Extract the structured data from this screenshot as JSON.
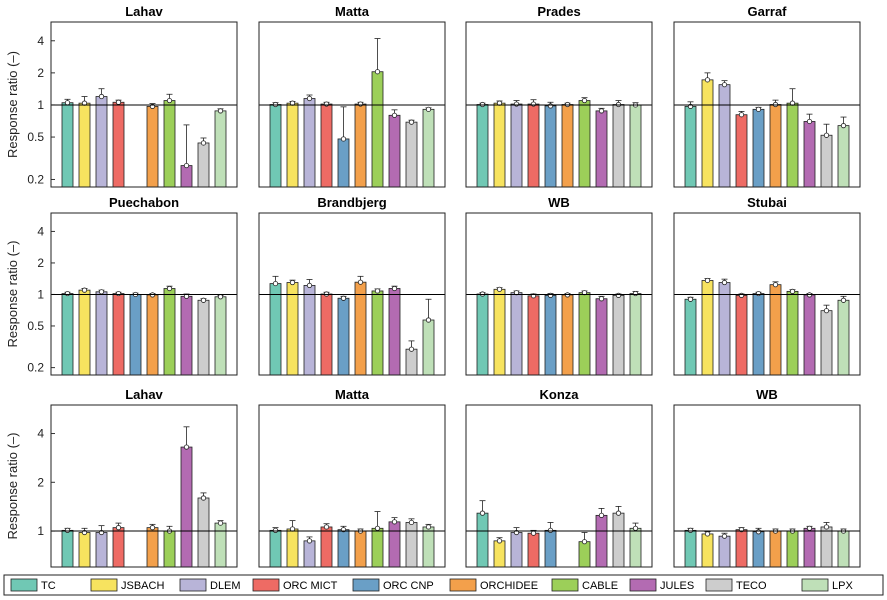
{
  "chart_data": {
    "type": "bar",
    "scale": "log",
    "ylabel": "Response ratio (–)",
    "reference_line": 1,
    "series": [
      {
        "name": "TC",
        "color": "#70c8b4"
      },
      {
        "name": "JSBACH",
        "color": "#f7e35f"
      },
      {
        "name": "DLEM",
        "color": "#b8b4d8"
      },
      {
        "name": "ORC MICT",
        "color": "#ee6b64"
      },
      {
        "name": "ORC CNP",
        "color": "#6a9fc6"
      },
      {
        "name": "ORCHIDEE",
        "color": "#f3a04b"
      },
      {
        "name": "CABLE",
        "color": "#9ccf59"
      },
      {
        "name": "JULES",
        "color": "#b36bb2"
      },
      {
        "name": "TECO",
        "color": "#cdcdcd"
      },
      {
        "name": "LPX",
        "color": "#bfe0b8"
      }
    ],
    "panels": [
      {
        "title": "Lahav",
        "ylim": [
          0.17,
          6.0
        ],
        "ticks": [
          0.2,
          0.5,
          1,
          2,
          4
        ],
        "values": [
          1.05,
          1.04,
          1.2,
          1.06,
          null,
          0.97,
          1.1,
          0.27,
          0.44,
          0.88
        ],
        "errors": [
          0.08,
          0.16,
          0.22,
          0.05,
          null,
          0.06,
          0.16,
          0.38,
          0.05,
          0.04
        ]
      },
      {
        "title": "Matta",
        "ylim": [
          0.17,
          6.0
        ],
        "ticks": [],
        "values": [
          1.01,
          1.04,
          1.15,
          1.02,
          0.48,
          1.02,
          2.05,
          0.8,
          0.69,
          0.91
        ],
        "errors": [
          0.04,
          0.04,
          0.09,
          0.04,
          0.48,
          0.04,
          2.15,
          0.1,
          0.03,
          0.03
        ]
      },
      {
        "title": "Prades",
        "ylim": [
          0.17,
          6.0
        ],
        "ticks": [],
        "values": [
          1.01,
          1.04,
          1.02,
          1.02,
          0.98,
          1.01,
          1.1,
          0.88,
          1.01,
          1.0
        ],
        "errors": [
          0.03,
          0.05,
          0.08,
          0.1,
          0.08,
          0.03,
          0.07,
          0.05,
          0.09,
          0.05
        ]
      },
      {
        "title": "Garraf",
        "ylim": [
          0.17,
          6.0
        ],
        "ticks": [],
        "values": [
          0.97,
          1.72,
          1.55,
          0.81,
          0.91,
          1.01,
          1.04,
          0.7,
          0.52,
          0.64
        ],
        "errors": [
          0.1,
          0.28,
          0.14,
          0.06,
          0.04,
          0.1,
          0.38,
          0.12,
          0.14,
          0.13
        ]
      },
      {
        "title": "Puechabon",
        "ylim": [
          0.17,
          6.0
        ],
        "ticks": [
          0.2,
          0.5,
          1,
          2,
          4
        ],
        "values": [
          1.02,
          1.1,
          1.06,
          1.02,
          1.0,
          0.99,
          1.14,
          0.96,
          0.88,
          0.95
        ],
        "errors": [
          0.03,
          0.04,
          0.04,
          0.03,
          0.03,
          0.03,
          0.06,
          0.05,
          0.03,
          0.03
        ]
      },
      {
        "title": "Brandbjerg",
        "ylim": [
          0.17,
          6.0
        ],
        "ticks": [],
        "values": [
          1.27,
          1.3,
          1.22,
          1.01,
          0.92,
          1.31,
          1.08,
          1.14,
          0.3,
          0.57
        ],
        "errors": [
          0.22,
          0.07,
          0.17,
          0.04,
          0.04,
          0.18,
          0.05,
          0.06,
          0.06,
          0.33
        ]
      },
      {
        "title": "WB",
        "ylim": [
          0.17,
          6.0
        ],
        "ticks": [],
        "values": [
          1.01,
          1.12,
          1.04,
          0.97,
          0.98,
          0.99,
          1.04,
          0.91,
          0.98,
          1.02
        ],
        "errors": [
          0.03,
          0.04,
          0.04,
          0.04,
          0.04,
          0.03,
          0.04,
          0.05,
          0.03,
          0.05
        ]
      },
      {
        "title": "Stubai",
        "ylim": [
          0.17,
          6.0
        ],
        "ticks": [],
        "values": [
          0.9,
          1.36,
          1.3,
          0.98,
          1.02,
          1.24,
          1.07,
          0.99,
          0.7,
          0.88
        ],
        "errors": [
          0.04,
          0.06,
          0.1,
          0.03,
          0.03,
          0.08,
          0.04,
          0.03,
          0.09,
          0.08
        ]
      },
      {
        "title": "Lahav",
        "ylim": [
          0.6,
          6.0
        ],
        "ticks": [
          1,
          2,
          4
        ],
        "values": [
          1.01,
          0.98,
          0.98,
          1.05,
          null,
          1.05,
          1.0,
          3.3,
          1.6,
          1.12
        ],
        "errors": [
          0.03,
          0.06,
          0.1,
          0.07,
          null,
          0.05,
          0.07,
          1.1,
          0.12,
          0.04
        ]
      },
      {
        "title": "Matta",
        "ylim": [
          0.6,
          6.0
        ],
        "ticks": [],
        "values": [
          1.01,
          1.03,
          0.87,
          1.06,
          1.02,
          1.0,
          1.04,
          1.14,
          1.13,
          1.06
        ],
        "errors": [
          0.04,
          0.13,
          0.05,
          0.05,
          0.05,
          0.03,
          0.28,
          0.07,
          0.06,
          0.04
        ]
      },
      {
        "title": "Konza",
        "ylim": [
          0.6,
          6.0
        ],
        "ticks": [],
        "values": [
          1.29,
          0.87,
          0.98,
          0.97,
          1.01,
          null,
          0.86,
          1.25,
          1.29,
          1.04
        ],
        "errors": [
          0.25,
          0.04,
          0.07,
          0.04,
          0.12,
          null,
          0.12,
          0.13,
          0.13,
          0.08
        ]
      },
      {
        "title": "WB",
        "ylim": [
          0.6,
          6.0
        ],
        "ticks": [],
        "values": [
          1.01,
          0.96,
          0.93,
          1.02,
          0.99,
          1.0,
          1.0,
          1.04,
          1.06,
          1.0
        ],
        "errors": [
          0.03,
          0.03,
          0.04,
          0.03,
          0.05,
          0.03,
          0.03,
          0.03,
          0.07,
          0.03
        ]
      }
    ]
  }
}
